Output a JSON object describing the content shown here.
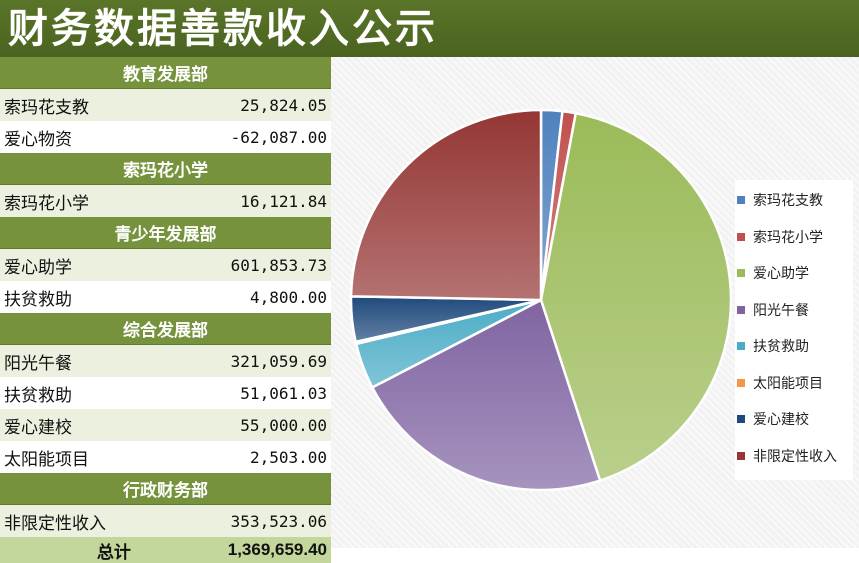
{
  "page_title": "财务数据善款收入公示",
  "table": {
    "sections": [
      {
        "header": "教育发展部",
        "rows": [
          {
            "label": "索玛花支教",
            "value": "25,824.05"
          },
          {
            "label": "爱心物资",
            "value": "-62,087.00"
          }
        ]
      },
      {
        "header": "索玛花小学",
        "rows": [
          {
            "label": "索玛花小学",
            "value": "16,121.84"
          }
        ]
      },
      {
        "header": "青少年发展部",
        "rows": [
          {
            "label": "爱心助学",
            "value": "601,853.73"
          },
          {
            "label": "扶贫救助",
            "value": "4,800.00"
          }
        ]
      },
      {
        "header": "综合发展部",
        "rows": [
          {
            "label": "阳光午餐",
            "value": "321,059.69"
          },
          {
            "label": "扶贫救助",
            "value": "51,061.03"
          },
          {
            "label": "爱心建校",
            "value": "55,000.00"
          },
          {
            "label": "太阳能项目",
            "value": "2,503.00"
          }
        ]
      },
      {
        "header": "行政财务部",
        "rows": [
          {
            "label": "非限定性收入",
            "value": "353,523.06"
          }
        ]
      }
    ],
    "total_label": "总计",
    "total_value": "1,369,659.40"
  },
  "chart_data": {
    "type": "pie",
    "title": "",
    "categories": [
      "索玛花支教",
      "索玛花小学",
      "爱心助学",
      "阳光午餐",
      "扶贫救助",
      "太阳能项目",
      "爱心建校",
      "非限定性收入"
    ],
    "values": [
      25824.05,
      16121.84,
      601853.73,
      321059.69,
      55861.03,
      2503.0,
      55000.0,
      353523.06
    ],
    "colors": [
      "#4f81bd",
      "#c0504d",
      "#9bbb59",
      "#8064a2",
      "#4bacc6",
      "#f79646",
      "#1f497d",
      "#943634"
    ],
    "legend_position": "right",
    "start_angle_deg": 0,
    "direction": "clockwise"
  }
}
